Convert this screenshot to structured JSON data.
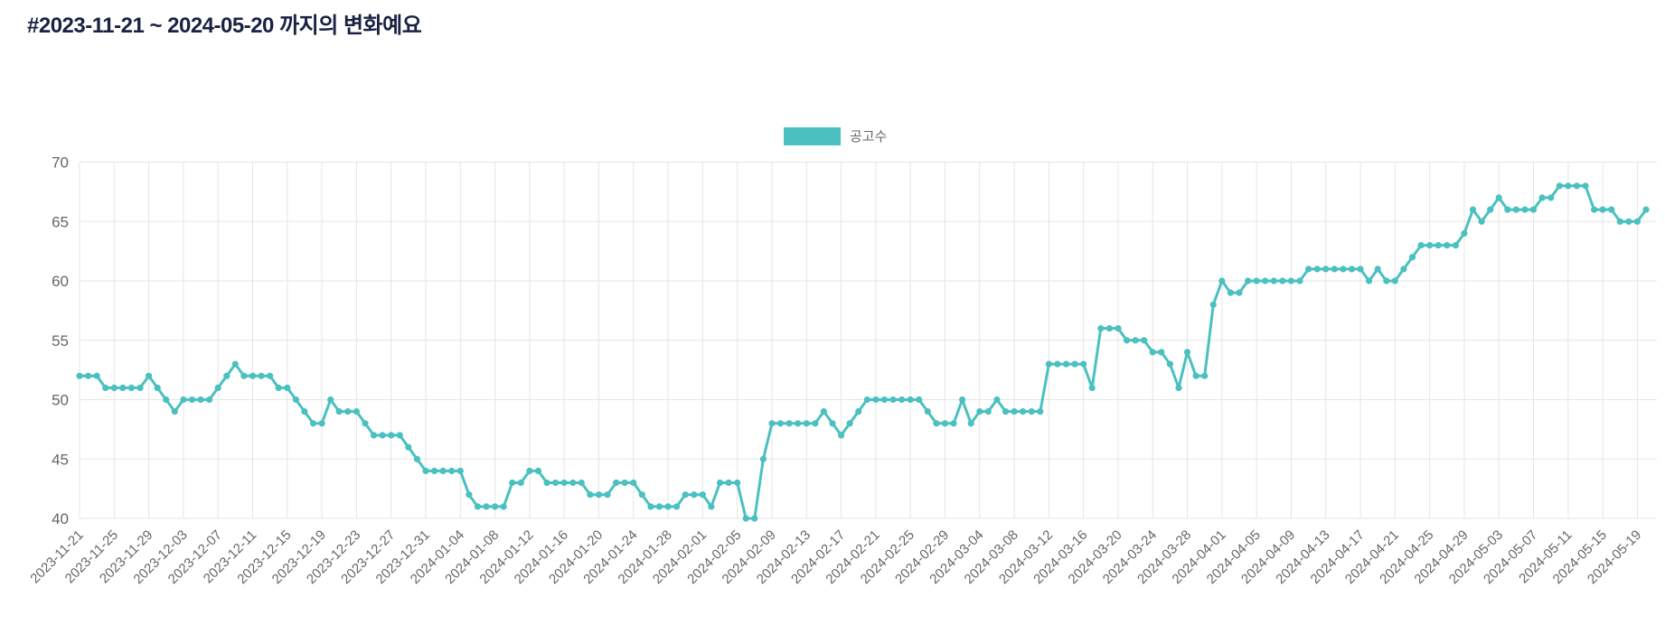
{
  "page": {
    "title": "#2023-11-21 ~ 2024-05-20 까지의 변화예요"
  },
  "style": {
    "line_color": "#4BC0C0",
    "grid_color": "#E5E5E5",
    "tick_color": "#666666",
    "title_color": "#1B2142",
    "background": "#FFFFFF"
  },
  "chart_data": {
    "type": "line",
    "title": "#2023-11-21 ~ 2024-05-20 까지의 변화예요",
    "legend": "공고수",
    "legend_position": "top-center",
    "grid": true,
    "marker": "circle",
    "xlabel": "",
    "ylabel": "",
    "ylim": [
      40,
      70
    ],
    "y_tick_step": 5,
    "x_start_date": "2023-11-21",
    "x_end_date": "2024-05-20",
    "x_ticks_every": 4,
    "x_tick_labels": [
      "2023-11-21",
      "2023-11-25",
      "2023-11-29",
      "2023-12-03",
      "2023-12-07",
      "2023-12-11",
      "2023-12-15",
      "2023-12-19",
      "2023-12-23",
      "2023-12-27",
      "2023-12-31",
      "2024-01-04",
      "2024-01-08",
      "2024-01-12",
      "2024-01-16",
      "2024-01-20",
      "2024-01-24",
      "2024-01-28",
      "2024-02-01",
      "2024-02-05",
      "2024-02-09",
      "2024-02-13",
      "2024-02-17",
      "2024-02-21",
      "2024-02-25",
      "2024-02-29",
      "2024-03-04",
      "2024-03-08",
      "2024-03-12",
      "2024-03-16",
      "2024-03-20",
      "2024-03-24",
      "2024-03-28",
      "2024-04-01",
      "2024-04-05",
      "2024-04-09",
      "2024-04-13",
      "2024-04-17",
      "2024-04-21",
      "2024-04-25",
      "2024-04-29",
      "2024-05-03",
      "2024-05-07",
      "2024-05-11",
      "2024-05-15",
      "2024-05-19"
    ],
    "values": [
      52,
      52,
      52,
      51,
      51,
      51,
      51,
      51,
      52,
      51,
      50,
      49,
      50,
      50,
      50,
      50,
      51,
      52,
      53,
      52,
      52,
      52,
      52,
      51,
      51,
      50,
      49,
      48,
      48,
      50,
      49,
      49,
      49,
      48,
      47,
      47,
      47,
      47,
      46,
      45,
      44,
      44,
      44,
      44,
      44,
      42,
      41,
      41,
      41,
      41,
      43,
      43,
      44,
      44,
      43,
      43,
      43,
      43,
      43,
      42,
      42,
      42,
      43,
      43,
      43,
      42,
      41,
      41,
      41,
      41,
      42,
      42,
      42,
      41,
      43,
      43,
      43,
      40,
      40,
      45,
      48,
      48,
      48,
      48,
      48,
      48,
      49,
      48,
      47,
      48,
      49,
      50,
      50,
      50,
      50,
      50,
      50,
      50,
      49,
      48,
      48,
      48,
      50,
      48,
      49,
      49,
      50,
      49,
      49,
      49,
      49,
      49,
      53,
      53,
      53,
      53,
      53,
      51,
      56,
      56,
      56,
      55,
      55,
      55,
      54,
      54,
      53,
      51,
      54,
      52,
      52,
      58,
      60,
      59,
      59,
      60,
      60,
      60,
      60,
      60,
      60,
      60,
      61,
      61,
      61,
      61,
      61,
      61,
      61,
      60,
      61,
      60,
      60,
      61,
      62,
      63,
      63,
      63,
      63,
      63,
      64,
      66,
      65,
      66,
      67,
      66,
      66,
      66,
      66,
      67,
      67,
      68,
      68,
      68,
      68,
      66,
      66,
      66,
      65,
      65,
      65,
      66
    ]
  }
}
